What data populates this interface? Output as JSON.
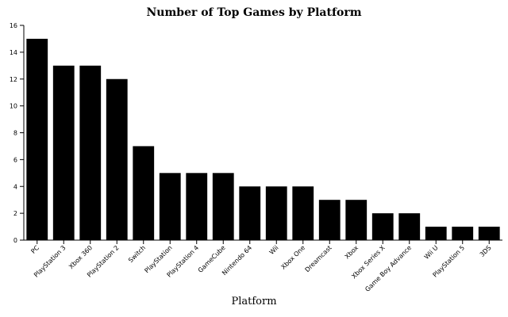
{
  "chart_data": {
    "type": "bar",
    "title": "Number of Top Games by Platform",
    "xlabel": "Platform",
    "categories": [
      "PC",
      "PlayStation 3",
      "Xbox 360",
      "PlayStation 2",
      "Switch",
      "PlayStation",
      "PlayStation 4",
      "GameCube",
      "Nintendo 64",
      "Wii",
      "Xbox One",
      "Dreamcast",
      "Xbox",
      "Xbox Series X",
      "Game Boy Advance",
      "Wii U",
      "PlayStation 5",
      "3DS"
    ],
    "values": [
      15,
      13,
      13,
      12,
      7,
      5,
      5,
      5,
      4,
      4,
      4,
      3,
      3,
      2,
      2,
      1,
      1,
      1
    ],
    "color": "#000000",
    "ylim": [
      0,
      16
    ],
    "yticks": [
      0,
      2,
      4,
      6,
      8,
      10,
      12,
      14,
      16
    ],
    "grid": false
  }
}
